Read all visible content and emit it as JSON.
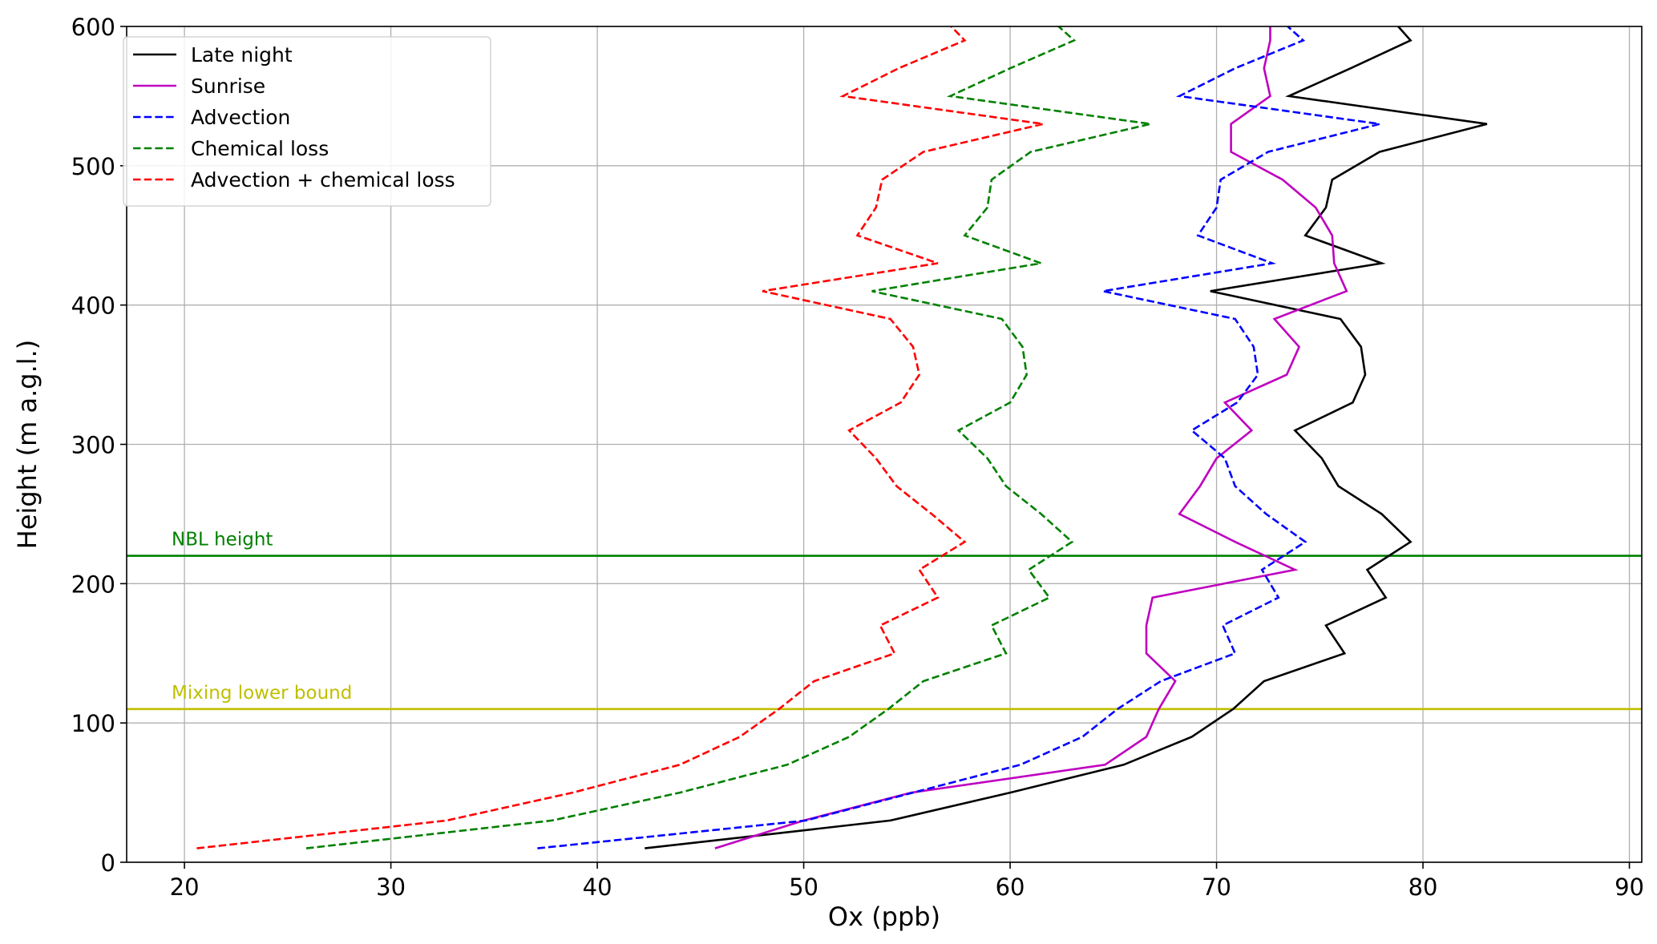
{
  "chart_data": {
    "type": "line",
    "xlabel": "Ox (ppb)",
    "ylabel": "Height (m a.g.l.)",
    "xlim": [
      17.2,
      90.6
    ],
    "ylim": [
      0,
      600
    ],
    "xticks": [
      20,
      30,
      40,
      50,
      60,
      70,
      80,
      90
    ],
    "yticks": [
      0,
      100,
      200,
      300,
      400,
      500,
      600
    ],
    "grid": true,
    "legend_position": "top-left",
    "heights": [
      10,
      30,
      50,
      70,
      90,
      110,
      130,
      150,
      170,
      190,
      210,
      230,
      250,
      270,
      290,
      310,
      330,
      350,
      370,
      390,
      410,
      430,
      450,
      470,
      490,
      510,
      530,
      550,
      570,
      590,
      610
    ],
    "series": [
      {
        "name": "Late night",
        "color": "#000000",
        "dash": "solid",
        "x": [
          42.3,
          54.2,
          60.0,
          65.5,
          68.8,
          70.8,
          72.3,
          76.2,
          75.3,
          78.2,
          77.3,
          79.4,
          78.0,
          75.9,
          75.1,
          73.8,
          76.6,
          77.2,
          77.0,
          76.0,
          69.7,
          78.0,
          74.3,
          75.3,
          75.6,
          77.9,
          83.1,
          73.5,
          76.5,
          79.4,
          78.2
        ],
        "y": [
          10,
          30,
          50,
          70,
          90,
          110,
          130,
          150,
          170,
          190,
          210,
          230,
          250,
          270,
          290,
          310,
          330,
          350,
          370,
          390,
          410,
          430,
          450,
          470,
          490,
          510,
          530,
          550,
          570,
          590,
          610
        ]
      },
      {
        "name": "Sunrise",
        "color": "#bf00bf",
        "dash": "solid",
        "x": [
          45.7,
          50.0,
          55.2,
          64.6,
          66.6,
          67.2,
          68.0,
          66.6,
          66.6,
          66.9,
          73.8,
          70.9,
          68.2,
          69.2,
          70.0,
          71.7,
          70.4,
          73.4,
          74.0,
          72.8,
          76.3,
          75.7,
          75.6,
          74.8,
          73.2,
          70.7,
          70.7,
          72.6,
          72.3,
          72.6,
          72.6
        ],
        "y": [
          10,
          30,
          50,
          70,
          90,
          110,
          130,
          150,
          170,
          190,
          210,
          230,
          250,
          270,
          290,
          310,
          330,
          350,
          370,
          390,
          410,
          430,
          450,
          470,
          490,
          510,
          530,
          550,
          570,
          590,
          610
        ]
      },
      {
        "name": "Advection",
        "color": "#0000ff",
        "dash": "dashed",
        "x": [
          37.1,
          50.1,
          55.3,
          60.5,
          63.5,
          65.2,
          67.3,
          70.9,
          70.3,
          73.0,
          72.2,
          74.3,
          72.4,
          70.9,
          70.4,
          68.8,
          71.0,
          72.0,
          71.8,
          70.9,
          64.5,
          72.7,
          69.1,
          70.0,
          70.2,
          72.5,
          77.9,
          68.2,
          70.9,
          74.2,
          72.7
        ],
        "y": [
          10,
          30,
          50,
          70,
          90,
          110,
          130,
          150,
          170,
          190,
          210,
          230,
          250,
          270,
          290,
          310,
          330,
          350,
          370,
          390,
          410,
          430,
          450,
          470,
          490,
          510,
          530,
          550,
          570,
          590,
          610
        ]
      },
      {
        "name": "Chemical loss",
        "color": "#008000",
        "dash": "dashed",
        "x": [
          25.9,
          37.8,
          44.0,
          49.2,
          52.2,
          54.1,
          55.8,
          59.8,
          59.1,
          61.9,
          60.9,
          63.0,
          61.5,
          59.8,
          58.9,
          57.5,
          60.0,
          60.8,
          60.6,
          59.6,
          53.3,
          61.5,
          57.8,
          58.9,
          59.1,
          61.0,
          66.8,
          57.1,
          60.0,
          63.1,
          61.6
        ],
        "y": [
          10,
          30,
          50,
          70,
          90,
          110,
          130,
          150,
          170,
          190,
          210,
          230,
          250,
          270,
          290,
          310,
          330,
          350,
          370,
          390,
          410,
          430,
          450,
          470,
          490,
          510,
          530,
          550,
          570,
          590,
          610
        ]
      },
      {
        "name": "Advection + chemical loss",
        "color": "#ff0000",
        "dash": "dashed",
        "x": [
          20.6,
          32.7,
          38.8,
          44.0,
          46.9,
          48.8,
          50.5,
          54.4,
          53.7,
          56.5,
          55.6,
          57.8,
          56.2,
          54.5,
          53.5,
          52.2,
          54.7,
          55.6,
          55.3,
          54.2,
          48.0,
          56.5,
          52.6,
          53.5,
          53.8,
          55.8,
          61.6,
          51.9,
          54.6,
          57.8,
          56.5
        ],
        "y": [
          10,
          30,
          50,
          70,
          90,
          110,
          130,
          150,
          170,
          190,
          210,
          230,
          250,
          270,
          290,
          310,
          330,
          350,
          370,
          390,
          410,
          430,
          450,
          470,
          490,
          510,
          530,
          550,
          570,
          590,
          610
        ]
      }
    ],
    "hlines": [
      {
        "y": 220,
        "label": "NBL height",
        "color": "#008000"
      },
      {
        "y": 110,
        "label": "Mixing lower bound",
        "color": "#bfbf00"
      }
    ]
  }
}
